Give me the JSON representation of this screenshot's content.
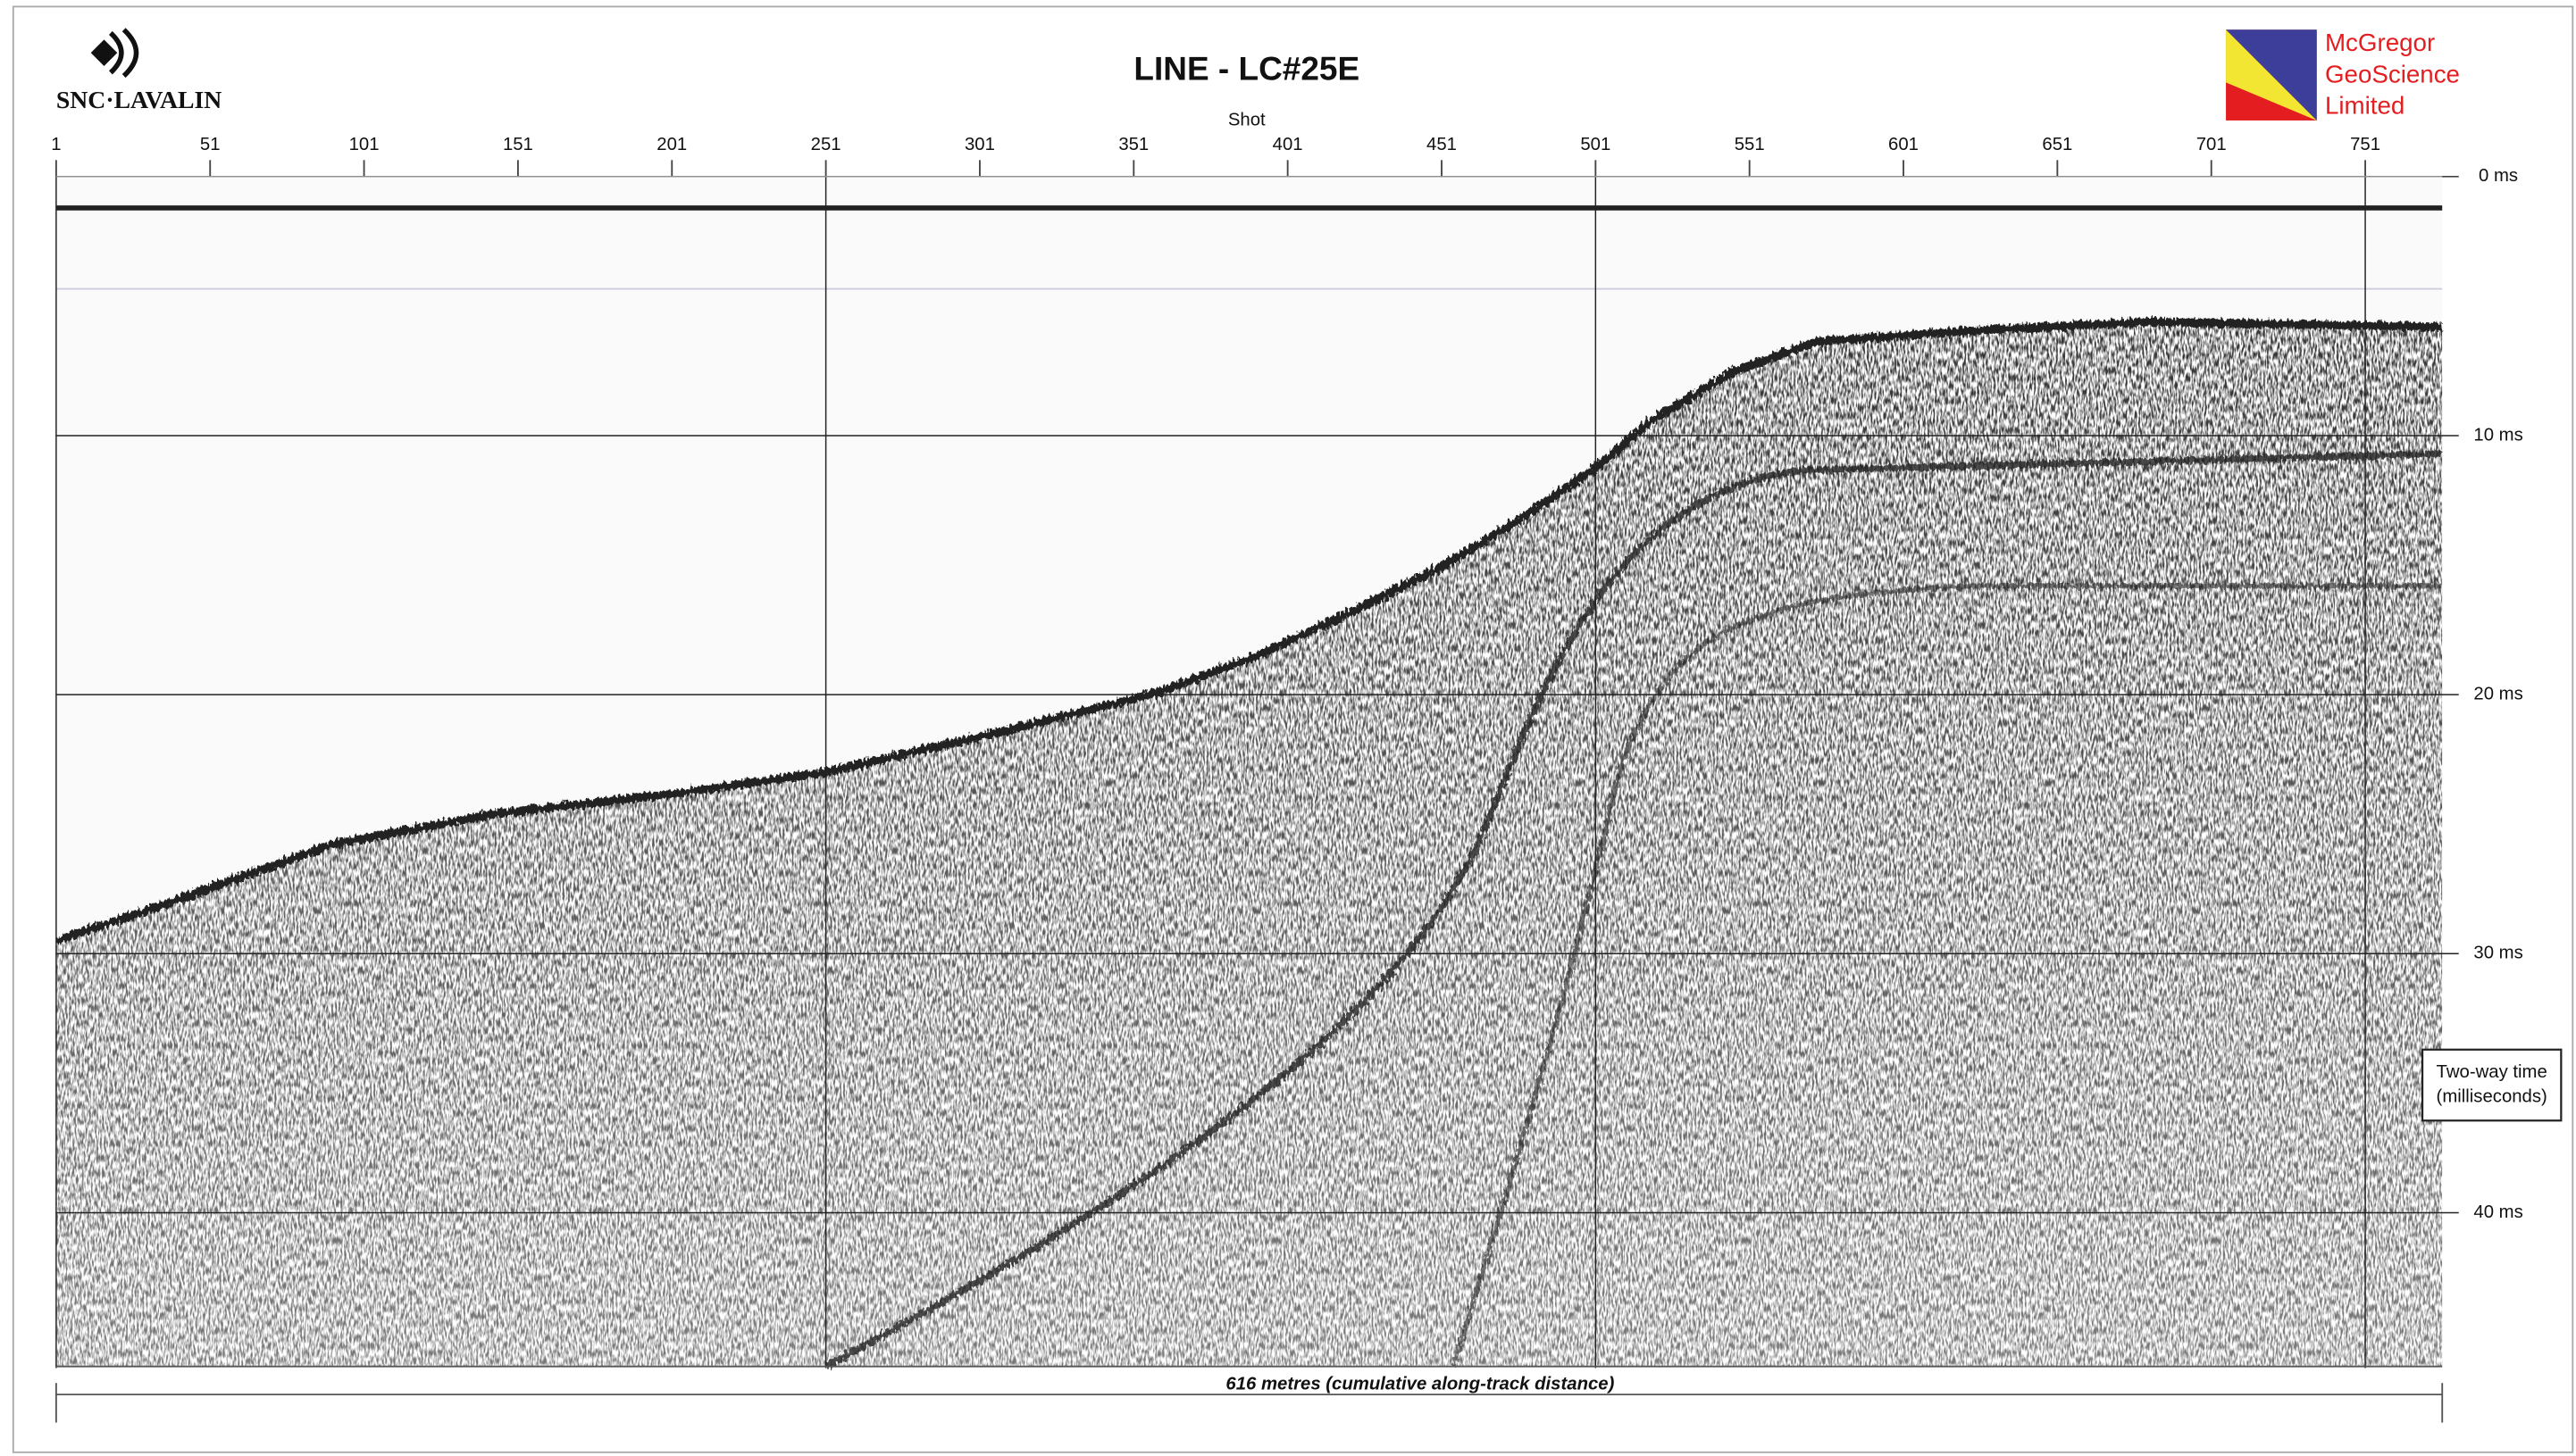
{
  "chart_data": {
    "type": "seismic",
    "title": "LINE - LC#25E",
    "x_label": "Shot",
    "y_label": [
      "Two-way time",
      "(milliseconds)"
    ],
    "footer": "616 metres (cumulative along-track distance)",
    "left_logo": "SNC·LAVALIN",
    "right_logo": [
      "McGregor",
      "GeoScience",
      "Limited"
    ],
    "xlim": [
      1,
      776
    ],
    "xticks": [
      1,
      51,
      101,
      151,
      201,
      251,
      301,
      351,
      401,
      451,
      501,
      551,
      601,
      651,
      701,
      751
    ],
    "xgrid": [
      1,
      251,
      501,
      751
    ],
    "ylim": [
      0,
      46
    ],
    "yticks": [
      {
        "value": 0,
        "label": "0 ms"
      },
      {
        "value": 10,
        "label": "10 ms"
      },
      {
        "value": 20,
        "label": "20 ms"
      },
      {
        "value": 30,
        "label": "30 ms"
      },
      {
        "value": 40,
        "label": "40 ms"
      }
    ]
  }
}
